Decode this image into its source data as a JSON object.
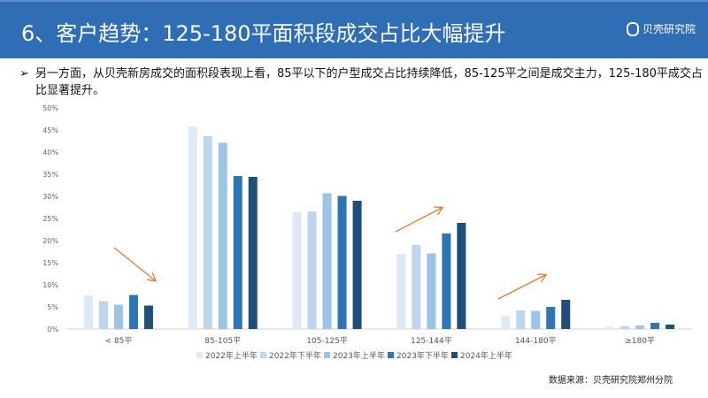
{
  "header": {
    "title": "6、客户趋势：125-180平面积段成交占比大幅提升",
    "logo_text": "贝壳研究院"
  },
  "bullet": {
    "marker": "➢",
    "text": "另一方面，从贝壳新房成交的面积段表现上看，85平以下的户型成交占比持续降低，85-125平之间是成交主力，125-180平成交占比显著提升。"
  },
  "chart_data": {
    "type": "bar",
    "title": "",
    "categories": [
      "< 85平",
      "85-105平",
      "105-125平",
      "125-144平",
      "144-180平",
      "≥180平"
    ],
    "series": [
      {
        "name": "2022年上半年",
        "color": "#dde9f5",
        "values": [
          7.6,
          45.8,
          26.5,
          17.0,
          2.9,
          0.5
        ]
      },
      {
        "name": "2022年下半年",
        "color": "#bcd6ee",
        "values": [
          6.3,
          43.6,
          26.6,
          19.0,
          4.2,
          0.6
        ]
      },
      {
        "name": "2023年上半年",
        "color": "#9dc3e6",
        "values": [
          5.5,
          42.1,
          30.7,
          17.1,
          4.1,
          0.8
        ]
      },
      {
        "name": "2023年下半年",
        "color": "#2e75b6",
        "values": [
          7.7,
          34.6,
          30.1,
          21.6,
          5.0,
          1.4
        ]
      },
      {
        "name": "2024年上半年",
        "color": "#1f4e79",
        "values": [
          5.3,
          34.4,
          29.0,
          24.0,
          6.6,
          1.0
        ]
      }
    ],
    "yticks": [
      "0%",
      "5%",
      "10%",
      "15%",
      "20%",
      "25%",
      "30%",
      "35%",
      "40%",
      "45%",
      "50%"
    ],
    "ylim": [
      0,
      50
    ],
    "ylabel": "",
    "xlabel": "",
    "legend": "bottom",
    "annotations": [
      "arrow down over < 85平",
      "arrow up over 125-144平",
      "arrow up over 144-180平"
    ]
  },
  "source": "数据来源：贝壳研究院郑州分院",
  "colors": {
    "header": "#2f6db5",
    "arrow": "#e07b39"
  }
}
